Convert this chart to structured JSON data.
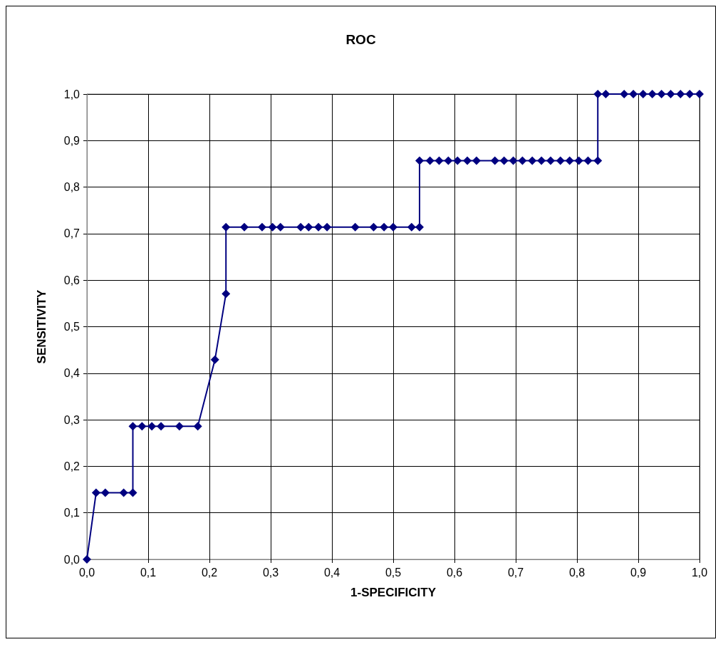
{
  "chart_data": {
    "type": "line",
    "title": "ROC",
    "xlabel": "1-SPECIFICITY",
    "ylabel": "SENSITIVITY",
    "xlim": [
      0,
      1
    ],
    "ylim": [
      0,
      1
    ],
    "xticks": [
      {
        "value": 0,
        "label": "0,0"
      },
      {
        "value": 0.1,
        "label": "0,1"
      },
      {
        "value": 0.2,
        "label": "0,2"
      },
      {
        "value": 0.3,
        "label": "0,3"
      },
      {
        "value": 0.4,
        "label": "0,4"
      },
      {
        "value": 0.5,
        "label": "0,5"
      },
      {
        "value": 0.6,
        "label": "0,6"
      },
      {
        "value": 0.7,
        "label": "0,7"
      },
      {
        "value": 0.8,
        "label": "0,8"
      },
      {
        "value": 0.9,
        "label": "0,9"
      },
      {
        "value": 1,
        "label": "1,0"
      }
    ],
    "yticks": [
      {
        "value": 0,
        "label": "0,0"
      },
      {
        "value": 0.1,
        "label": "0,1"
      },
      {
        "value": 0.2,
        "label": "0,2"
      },
      {
        "value": 0.3,
        "label": "0,3"
      },
      {
        "value": 0.4,
        "label": "0,4"
      },
      {
        "value": 0.5,
        "label": "0,5"
      },
      {
        "value": 0.6,
        "label": "0,6"
      },
      {
        "value": 0.7,
        "label": "0,7"
      },
      {
        "value": 0.8,
        "label": "0,8"
      },
      {
        "value": 0.9,
        "label": "0,9"
      },
      {
        "value": 1,
        "label": "1,0"
      }
    ],
    "grid": true,
    "marker": "diamond",
    "line_style": "solid",
    "series": [
      {
        "color": "#000080",
        "x": [
          0,
          0.015,
          0.03,
          0.06,
          0.075,
          0.075,
          0.09,
          0.106,
          0.121,
          0.151,
          0.181,
          0.209,
          0.227,
          0.227,
          0.257,
          0.286,
          0.303,
          0.316,
          0.349,
          0.362,
          0.378,
          0.392,
          0.438,
          0.468,
          0.485,
          0.5,
          0.53,
          0.543,
          0.543,
          0.56,
          0.575,
          0.59,
          0.605,
          0.621,
          0.636,
          0.666,
          0.681,
          0.696,
          0.711,
          0.727,
          0.742,
          0.757,
          0.773,
          0.788,
          0.803,
          0.818,
          0.834,
          0.834,
          0.847,
          0.877,
          0.892,
          0.908,
          0.923,
          0.938,
          0.953,
          0.969,
          0.984,
          1
        ],
        "values": [
          0,
          0.143,
          0.143,
          0.143,
          0.143,
          0.286,
          0.286,
          0.286,
          0.286,
          0.286,
          0.286,
          0.429,
          0.571,
          0.714,
          0.714,
          0.714,
          0.714,
          0.714,
          0.714,
          0.714,
          0.714,
          0.714,
          0.714,
          0.714,
          0.714,
          0.714,
          0.714,
          0.714,
          0.857,
          0.857,
          0.857,
          0.857,
          0.857,
          0.857,
          0.857,
          0.857,
          0.857,
          0.857,
          0.857,
          0.857,
          0.857,
          0.857,
          0.857,
          0.857,
          0.857,
          0.857,
          0.857,
          1,
          1,
          1,
          1,
          1,
          1,
          1,
          1,
          1,
          1,
          1
        ]
      }
    ]
  }
}
